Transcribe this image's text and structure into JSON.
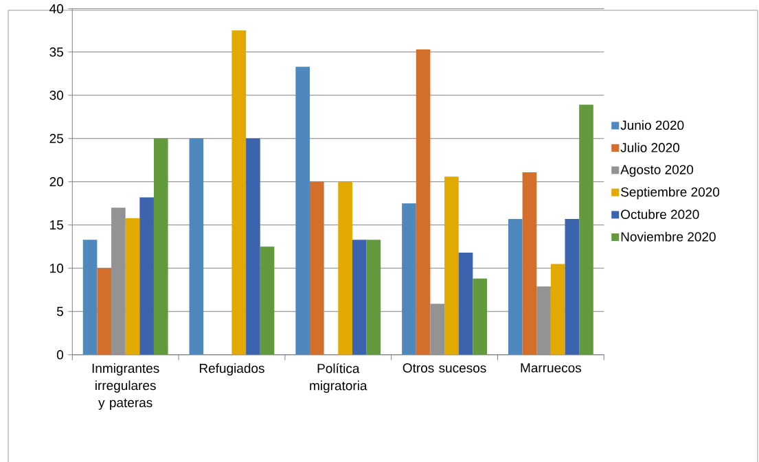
{
  "chart_data": {
    "type": "bar",
    "categories": [
      "Inmigrantes irregulares y pateras",
      "Refugiados",
      "Política migratoria",
      "Otros sucesos",
      "Marruecos"
    ],
    "series": [
      {
        "name": "Junio 2020",
        "color": "#4f88bd",
        "values": [
          13.3,
          25,
          33.3,
          17.5,
          15.7
        ]
      },
      {
        "name": "Julio 2020",
        "color": "#d36e2b",
        "values": [
          10,
          null,
          20,
          35.3,
          21.1
        ]
      },
      {
        "name": "Agosto 2020",
        "color": "#939393",
        "values": [
          17,
          null,
          null,
          5.9,
          7.9
        ]
      },
      {
        "name": "Septiembre 2020",
        "color": "#e2a900",
        "values": [
          15.8,
          37.5,
          20,
          20.6,
          10.5
        ]
      },
      {
        "name": "Octubre 2020",
        "color": "#3c64ae",
        "values": [
          18.2,
          25,
          13.3,
          11.8,
          15.7
        ]
      },
      {
        "name": "Noviembre 2020",
        "color": "#629a3d",
        "values": [
          25,
          12.5,
          13.3,
          8.8,
          28.9
        ]
      }
    ],
    "ylim": [
      0,
      40
    ],
    "yticks": [
      0,
      5,
      10,
      15,
      20,
      25,
      30,
      35,
      40
    ],
    "grid": "y",
    "legend": "right"
  }
}
